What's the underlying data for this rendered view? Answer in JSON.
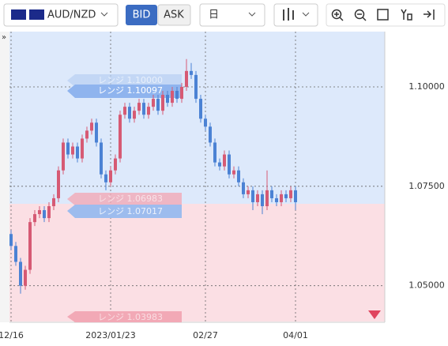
{
  "toolbar": {
    "pair": "AUD/NZD",
    "bid": "BID",
    "ask": "ASK",
    "period": "日"
  },
  "chart_data": {
    "type": "candlestick",
    "categories": [
      "12/16",
      null,
      null,
      null,
      null,
      null,
      null,
      null,
      null,
      null,
      null,
      null,
      null,
      null,
      null,
      null,
      null,
      null,
      null,
      null,
      null,
      "2023/01/23",
      null,
      null,
      null,
      null,
      null,
      null,
      null,
      null,
      null,
      null,
      null,
      null,
      null,
      null,
      null,
      null,
      null,
      null,
      null,
      "02/27",
      null,
      null,
      null,
      null,
      null,
      null,
      null,
      null,
      null,
      null,
      null,
      null,
      null,
      null,
      null,
      null,
      null,
      null,
      "04/01"
    ],
    "open": [
      1.063,
      1.06,
      1.056,
      1.05,
      1.054,
      1.066,
      1.068,
      1.069,
      1.067,
      1.07,
      1.072,
      1.079,
      1.086,
      1.083,
      1.085,
      1.082,
      1.087,
      1.089,
      1.091,
      1.086,
      1.078,
      1.076,
      1.079,
      1.082,
      1.093,
      1.095,
      1.092,
      1.094,
      1.096,
      1.093,
      1.095,
      1.097,
      1.094,
      1.098,
      1.096,
      1.099,
      1.097,
      1.1,
      1.104,
      1.103,
      1.097,
      1.092,
      1.09,
      1.086,
      1.081,
      1.08,
      1.083,
      1.078,
      1.079,
      1.076,
      1.073,
      1.074,
      1.071,
      1.073,
      1.07,
      1.074,
      1.072,
      1.071,
      1.073,
      1.072,
      1.074
    ],
    "high": [
      1.064,
      1.061,
      1.057,
      1.055,
      1.067,
      1.069,
      1.07,
      1.07,
      1.071,
      1.073,
      1.08,
      1.087,
      1.087,
      1.086,
      1.086,
      1.088,
      1.09,
      1.092,
      1.092,
      1.087,
      1.079,
      1.08,
      1.083,
      1.094,
      1.096,
      1.096,
      1.095,
      1.097,
      1.097,
      1.096,
      1.098,
      1.098,
      1.099,
      1.099,
      1.1,
      1.1,
      1.101,
      1.107,
      1.106,
      1.104,
      1.098,
      1.093,
      1.091,
      1.087,
      1.082,
      1.084,
      1.084,
      1.08,
      1.08,
      1.077,
      1.075,
      1.075,
      1.074,
      1.074,
      1.079,
      1.075,
      1.073,
      1.074,
      1.074,
      1.075,
      1.075
    ],
    "low": [
      1.059,
      1.055,
      1.048,
      1.049,
      1.053,
      1.065,
      1.067,
      1.066,
      1.066,
      1.069,
      1.071,
      1.078,
      1.082,
      1.082,
      1.081,
      1.081,
      1.086,
      1.088,
      1.085,
      1.077,
      1.074,
      1.075,
      1.078,
      1.081,
      1.092,
      1.091,
      1.091,
      1.093,
      1.092,
      1.092,
      1.094,
      1.093,
      1.093,
      1.095,
      1.095,
      1.096,
      1.096,
      1.099,
      1.102,
      1.096,
      1.091,
      1.089,
      1.085,
      1.08,
      1.079,
      1.079,
      1.077,
      1.077,
      1.075,
      1.072,
      1.072,
      1.069,
      1.07,
      1.068,
      1.069,
      1.071,
      1.07,
      1.07,
      1.071,
      1.071,
      1.069
    ],
    "close": [
      1.06,
      1.056,
      1.05,
      1.054,
      1.066,
      1.068,
      1.069,
      1.067,
      1.07,
      1.072,
      1.079,
      1.086,
      1.083,
      1.085,
      1.082,
      1.087,
      1.089,
      1.091,
      1.086,
      1.078,
      1.076,
      1.079,
      1.082,
      1.093,
      1.095,
      1.092,
      1.094,
      1.096,
      1.093,
      1.095,
      1.097,
      1.094,
      1.098,
      1.096,
      1.099,
      1.097,
      1.1,
      1.104,
      1.103,
      1.097,
      1.092,
      1.09,
      1.086,
      1.081,
      1.08,
      1.083,
      1.078,
      1.079,
      1.076,
      1.073,
      1.074,
      1.071,
      1.073,
      1.07,
      1.074,
      1.072,
      1.071,
      1.073,
      1.072,
      1.074,
      1.071
    ],
    "up_color": "#d65a74",
    "down_color": "#4b82d4",
    "ylim": [
      1.0408,
      1.1139
    ],
    "yticks": [
      {
        "value": 1.1,
        "label": "1.10000"
      },
      {
        "value": 1.075,
        "label": "1.07500"
      },
      {
        "value": 1.05,
        "label": "1.05000"
      }
    ],
    "grid": true,
    "annotations": [
      "レンジ 1.10097",
      "レンジ 1.10000",
      "レンジ 1.07017",
      "レンジ 1.06983",
      "レンジ 1.03983"
    ]
  }
}
